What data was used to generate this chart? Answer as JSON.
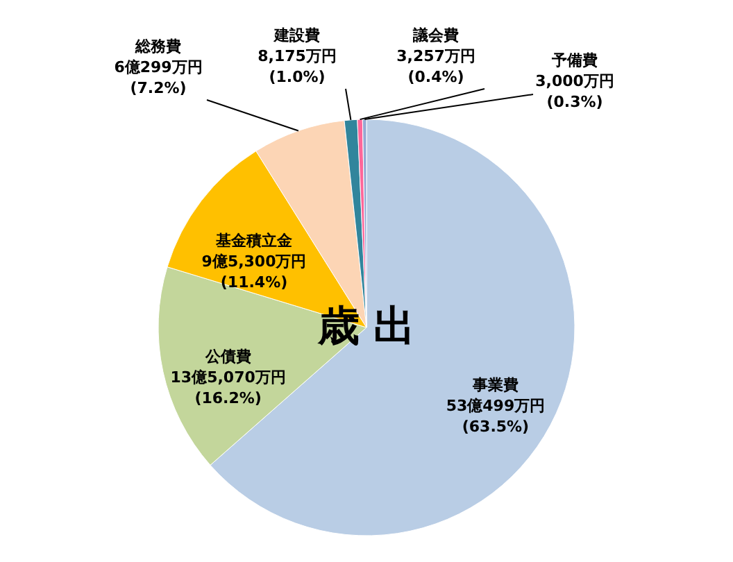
{
  "chart_data": {
    "type": "pie",
    "title": "歳 出",
    "categories": [
      "事業費",
      "公債費",
      "基金積立金",
      "総務費",
      "建設費",
      "議会費",
      "予備費"
    ],
    "values": [
      63.5,
      16.2,
      11.4,
      7.2,
      1.0,
      0.4,
      0.3
    ],
    "colors": [
      "#b9cde5",
      "#c3d69b",
      "#ffc000",
      "#fcd5b5",
      "#31859c",
      "#ff6699",
      "#95a9d3"
    ],
    "value_labels": [
      "53億499万円\n(63.5%)",
      "13億5,070万円\n(16.2%)",
      "9億5,300万円\n(11.4%)",
      "6億299万円\n(7.2%)",
      "8,175万円\n(1.0%)",
      "3,257万円\n(0.4%)",
      "3,000万円\n(0.3%)"
    ]
  }
}
